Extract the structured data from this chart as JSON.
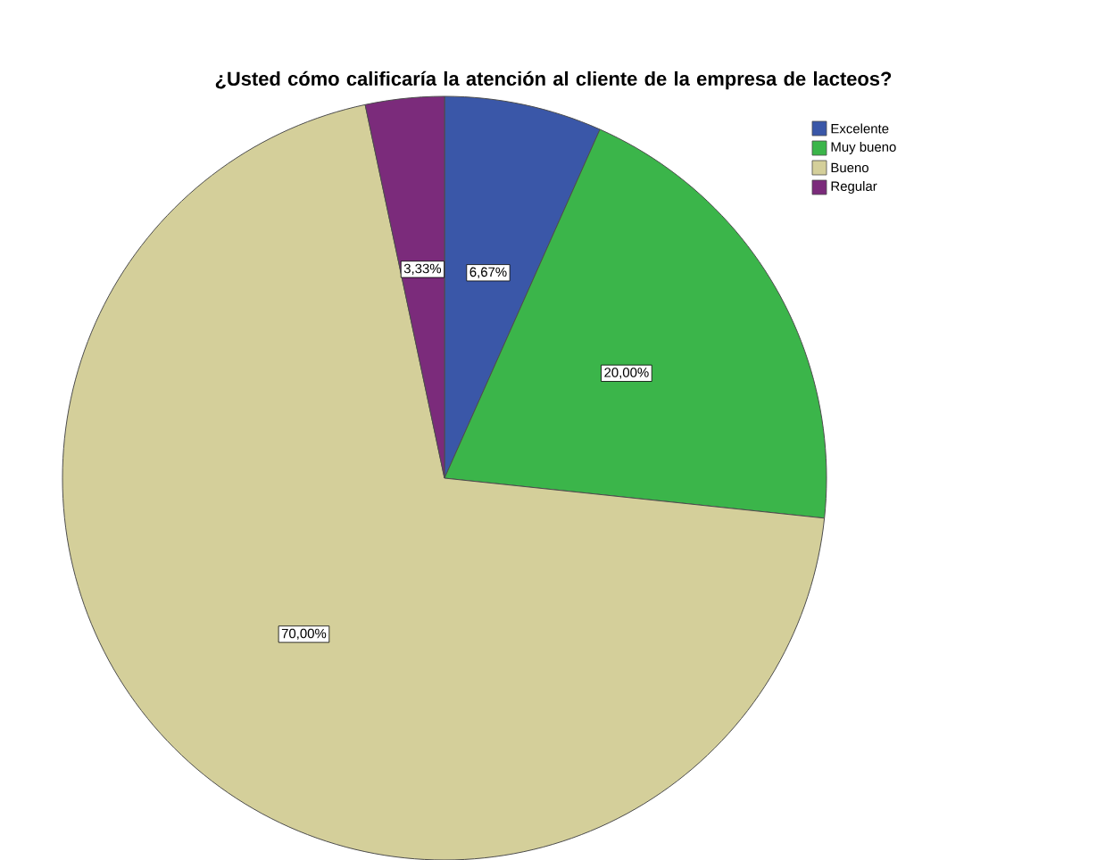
{
  "chart_data": {
    "type": "pie",
    "title": "¿Usted cómo calificaría la atención al cliente de la empresa de lacteos?",
    "categories": [
      "Excelente",
      "Muy bueno",
      "Bueno",
      "Regular"
    ],
    "values": [
      6.67,
      20,
      70,
      3.33
    ],
    "value_labels": [
      "6,67%",
      "20,00%",
      "70,00%",
      "3,33%"
    ],
    "colors": [
      "#3a57a8",
      "#3bb54a",
      "#d4cf9a",
      "#7b2b7b"
    ],
    "legend": "top right"
  }
}
